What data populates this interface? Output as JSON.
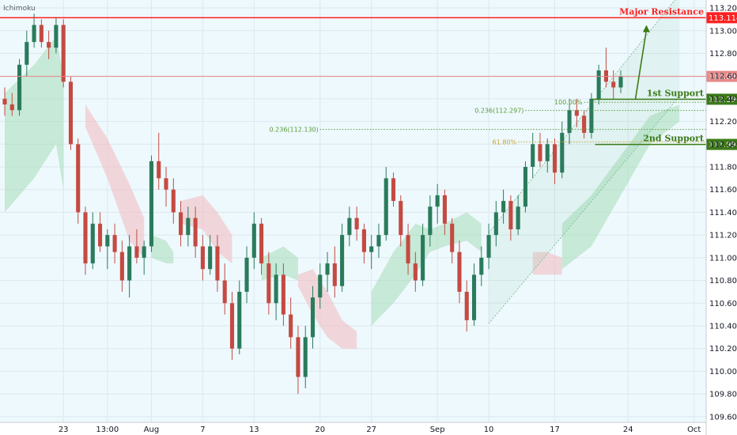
{
  "indicator_label": "Ichimoku",
  "colors": {
    "background": "#eef9fd",
    "axis_bg": "#ffffff",
    "up": "#2a7b5c",
    "down": "#c44a42",
    "resistance": "#ff2020",
    "support": "#3b7a17",
    "current": "#e88a8a",
    "fib_green": "#5a9a3a",
    "fib_gold": "#c9a227",
    "cloud_green": "#a8dcb8",
    "cloud_red": "#f3b9bd",
    "channel": "#7fc29a"
  },
  "chart_data": {
    "type": "candlestick",
    "y_range": [
      109.55,
      113.27
    ],
    "x_range": [
      0,
      95
    ],
    "y_ticks": [
      "113.200",
      "113.000",
      "112.800",
      "112.600",
      "112.400",
      "112.200",
      "112.000",
      "111.800",
      "111.600",
      "111.400",
      "111.200",
      "111.000",
      "110.800",
      "110.600",
      "110.400",
      "110.200",
      "110.000",
      "109.800",
      "109.600"
    ],
    "x_ticks": [
      {
        "label": "23",
        "x": 8
      },
      {
        "label": "13:00",
        "x": 14
      },
      {
        "label": "Aug",
        "x": 20
      },
      {
        "label": "7",
        "x": 27
      },
      {
        "label": "13",
        "x": 34
      },
      {
        "label": "20",
        "x": 43
      },
      {
        "label": "27",
        "x": 50
      },
      {
        "label": "Sep",
        "x": 59
      },
      {
        "label": "10",
        "x": 66
      },
      {
        "label": "17",
        "x": 75
      },
      {
        "label": "24",
        "x": 85
      },
      {
        "label": "Oct",
        "x": 94
      }
    ],
    "price_levels": [
      {
        "name": "major-resistance",
        "value": 113.114,
        "tag": "113.114",
        "label": "Major Resistance",
        "color": "#ff2020"
      },
      {
        "name": "current-price",
        "value": 112.597,
        "tag": "112.597",
        "label": "",
        "color": "#e88a8a"
      },
      {
        "name": "first-support",
        "value": 112.396,
        "tag": "112.396",
        "label": "1st Support",
        "color": "#3b7a17"
      },
      {
        "name": "second-support",
        "value": 111.998,
        "tag": "111.998",
        "label": "2nd Support",
        "color": "#3b7a17"
      }
    ],
    "fib_lines": [
      {
        "label": "100.00%",
        "value": 112.37,
        "x_start": 79,
        "color": "#5a9a3a"
      },
      {
        "label": "0.236(112.297)",
        "value": 112.297,
        "x_start": 71,
        "color": "#5a9a3a"
      },
      {
        "label": "0.236(112.130)",
        "value": 112.13,
        "x_start": 43,
        "color": "#5a9a3a"
      },
      {
        "label": "61.80%",
        "value": 112.02,
        "x_start": 70,
        "color": "#c9a227"
      }
    ],
    "arrow": {
      "from": [
        86,
        112.396
      ],
      "to": [
        87.5,
        113.05
      ]
    },
    "channel": {
      "lower": [
        [
          66,
          110.42
        ],
        [
          92,
          112.42
        ]
      ],
      "upper": [
        [
          66,
          111.22
        ],
        [
          92,
          113.32
        ]
      ]
    },
    "cloud": [
      {
        "x": [
          0,
          4,
          7,
          8
        ],
        "top": [
          112.45,
          112.7,
          112.95,
          112.6
        ],
        "bottom": [
          111.4,
          111.7,
          112.0,
          111.6
        ],
        "color": "green"
      },
      {
        "x": [
          11,
          14,
          17,
          19
        ],
        "top": [
          112.35,
          112.05,
          111.65,
          111.35
        ],
        "bottom": [
          112.15,
          111.7,
          111.15,
          111.0
        ],
        "color": "red"
      },
      {
        "x": [
          20,
          22,
          23
        ],
        "top": [
          111.2,
          111.15,
          111.05
        ],
        "bottom": [
          111.0,
          110.95,
          110.95
        ],
        "color": "green"
      },
      {
        "x": [
          24,
          27,
          29,
          31
        ],
        "top": [
          111.5,
          111.55,
          111.4,
          111.2
        ],
        "bottom": [
          111.3,
          111.25,
          111.05,
          110.95
        ],
        "color": "red"
      },
      {
        "x": [
          35,
          38,
          40
        ],
        "top": [
          111.0,
          111.1,
          111.0
        ],
        "bottom": [
          110.8,
          110.85,
          110.8
        ],
        "color": "green"
      },
      {
        "x": [
          40,
          42,
          44,
          46,
          48
        ],
        "top": [
          110.85,
          110.9,
          110.7,
          110.45,
          110.35
        ],
        "bottom": [
          110.75,
          110.5,
          110.3,
          110.2,
          110.2
        ],
        "color": "red"
      },
      {
        "x": [
          50,
          53,
          56,
          58,
          60,
          63,
          65
        ],
        "top": [
          110.7,
          111.05,
          111.3,
          111.25,
          111.3,
          111.4,
          111.3
        ],
        "bottom": [
          110.4,
          110.6,
          110.85,
          111.05,
          111.1,
          111.15,
          111.05
        ],
        "color": "green"
      },
      {
        "x": [
          72,
          74,
          76
        ],
        "top": [
          111.05,
          111.05,
          111.0
        ],
        "bottom": [
          110.85,
          110.85,
          110.85
        ],
        "color": "red"
      },
      {
        "x": [
          76,
          80,
          84,
          88,
          92
        ],
        "top": [
          111.3,
          111.55,
          111.9,
          112.25,
          112.35
        ],
        "bottom": [
          110.9,
          111.1,
          111.55,
          112.0,
          112.2
        ],
        "color": "green"
      }
    ],
    "candles": [
      [
        112.4,
        112.5,
        112.25,
        112.35
      ],
      [
        112.35,
        112.45,
        112.25,
        112.3
      ],
      [
        112.3,
        112.75,
        112.25,
        112.7
      ],
      [
        112.7,
        113.0,
        112.6,
        112.9
      ],
      [
        112.9,
        113.15,
        112.85,
        113.05
      ],
      [
        113.05,
        113.1,
        112.85,
        112.9
      ],
      [
        112.9,
        113.0,
        112.75,
        112.85
      ],
      [
        112.85,
        113.12,
        112.8,
        113.05
      ],
      [
        113.05,
        113.1,
        112.5,
        112.55
      ],
      [
        112.55,
        112.6,
        111.95,
        112.0
      ],
      [
        112.0,
        112.05,
        111.3,
        111.4
      ],
      [
        111.4,
        111.45,
        110.85,
        110.95
      ],
      [
        110.95,
        111.4,
        110.9,
        111.3
      ],
      [
        111.3,
        111.4,
        111.05,
        111.1
      ],
      [
        111.1,
        111.25,
        110.9,
        111.2
      ],
      [
        111.2,
        111.3,
        110.95,
        111.05
      ],
      [
        111.05,
        111.15,
        110.7,
        110.8
      ],
      [
        110.8,
        111.2,
        110.65,
        111.1
      ],
      [
        111.1,
        111.25,
        110.95,
        111.0
      ],
      [
        111.0,
        111.15,
        110.85,
        111.1
      ],
      [
        111.1,
        111.9,
        111.05,
        111.85
      ],
      [
        111.85,
        112.1,
        111.6,
        111.7
      ],
      [
        111.7,
        111.8,
        111.45,
        111.6
      ],
      [
        111.6,
        111.7,
        111.3,
        111.4
      ],
      [
        111.4,
        111.5,
        111.1,
        111.2
      ],
      [
        111.2,
        111.45,
        111.1,
        111.35
      ],
      [
        111.35,
        111.45,
        111.0,
        111.1
      ],
      [
        111.1,
        111.2,
        110.8,
        110.9
      ],
      [
        110.9,
        111.2,
        110.85,
        111.1
      ],
      [
        111.1,
        111.2,
        110.7,
        110.8
      ],
      [
        110.8,
        110.95,
        110.5,
        110.6
      ],
      [
        110.6,
        110.7,
        110.1,
        110.2
      ],
      [
        110.2,
        110.8,
        110.15,
        110.7
      ],
      [
        110.7,
        111.1,
        110.6,
        111.0
      ],
      [
        111.0,
        111.4,
        110.9,
        111.3
      ],
      [
        111.3,
        111.35,
        110.85,
        110.95
      ],
      [
        110.95,
        111.05,
        110.5,
        110.6
      ],
      [
        110.6,
        110.95,
        110.45,
        110.85
      ],
      [
        110.85,
        110.95,
        110.4,
        110.5
      ],
      [
        110.5,
        110.65,
        110.2,
        110.3
      ],
      [
        110.3,
        110.4,
        109.8,
        109.95
      ],
      [
        109.95,
        110.4,
        109.85,
        110.3
      ],
      [
        110.3,
        110.75,
        110.2,
        110.65
      ],
      [
        110.65,
        110.95,
        110.55,
        110.85
      ],
      [
        110.85,
        111.05,
        110.7,
        110.95
      ],
      [
        110.95,
        111.1,
        110.65,
        110.75
      ],
      [
        110.75,
        111.3,
        110.7,
        111.2
      ],
      [
        111.2,
        111.45,
        111.1,
        111.35
      ],
      [
        111.35,
        111.45,
        111.15,
        111.25
      ],
      [
        111.25,
        111.3,
        110.95,
        111.05
      ],
      [
        111.05,
        111.2,
        110.9,
        111.1
      ],
      [
        111.1,
        111.3,
        111.0,
        111.2
      ],
      [
        111.2,
        111.8,
        111.15,
        111.7
      ],
      [
        111.7,
        111.75,
        111.45,
        111.5
      ],
      [
        111.5,
        111.55,
        111.1,
        111.2
      ],
      [
        111.2,
        111.3,
        110.85,
        110.95
      ],
      [
        110.95,
        111.05,
        110.7,
        110.8
      ],
      [
        110.8,
        111.3,
        110.75,
        111.2
      ],
      [
        111.2,
        111.55,
        111.1,
        111.45
      ],
      [
        111.45,
        111.65,
        111.3,
        111.55
      ],
      [
        111.55,
        111.6,
        111.2,
        111.3
      ],
      [
        111.3,
        111.35,
        110.95,
        111.05
      ],
      [
        111.05,
        111.15,
        110.6,
        110.7
      ],
      [
        110.7,
        110.8,
        110.35,
        110.45
      ],
      [
        110.45,
        110.95,
        110.4,
        110.85
      ],
      [
        110.85,
        111.1,
        110.75,
        111.0
      ],
      [
        111.0,
        111.3,
        110.9,
        111.2
      ],
      [
        111.2,
        111.5,
        111.1,
        111.4
      ],
      [
        111.4,
        111.6,
        111.3,
        111.5
      ],
      [
        111.5,
        111.55,
        111.15,
        111.25
      ],
      [
        111.25,
        111.55,
        111.2,
        111.45
      ],
      [
        111.45,
        111.85,
        111.4,
        111.8
      ],
      [
        111.8,
        112.1,
        111.7,
        112.0
      ],
      [
        112.0,
        112.1,
        111.8,
        111.85
      ],
      [
        111.85,
        112.05,
        111.75,
        112.0
      ],
      [
        112.0,
        112.05,
        111.65,
        111.75
      ],
      [
        111.75,
        112.2,
        111.7,
        112.1
      ],
      [
        112.1,
        112.4,
        112.0,
        112.3
      ],
      [
        112.3,
        112.4,
        112.15,
        112.25
      ],
      [
        112.25,
        112.3,
        112.05,
        112.1
      ],
      [
        112.1,
        112.45,
        112.05,
        112.4
      ],
      [
        112.4,
        112.7,
        112.35,
        112.65
      ],
      [
        112.65,
        112.85,
        112.5,
        112.55
      ],
      [
        112.55,
        112.65,
        112.4,
        112.5
      ],
      [
        112.5,
        112.65,
        112.45,
        112.6
      ]
    ]
  }
}
